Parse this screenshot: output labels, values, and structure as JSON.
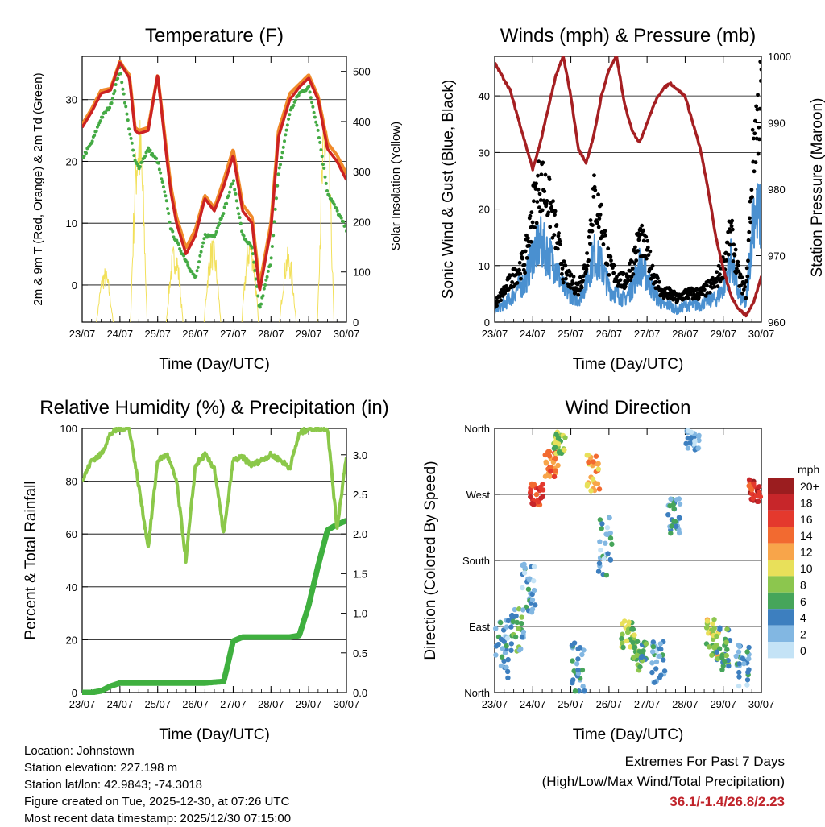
{
  "colors": {
    "red": "#cc2222",
    "orange": "#f08a2a",
    "green": "#44aa44",
    "yellow": "#f2e05a",
    "blue": "#4a90d0",
    "black": "#000000",
    "maroon": "#a51f22",
    "rh": "#8bc84a",
    "rain": "#3fb03f",
    "extreme": "#c0232a"
  },
  "x_ticks": [
    "23/07",
    "24/07",
    "25/07",
    "26/07",
    "27/07",
    "28/07",
    "29/07",
    "30/07"
  ],
  "chart_data": [
    {
      "id": "temperature",
      "type": "line",
      "title": "Temperature (F)",
      "xlabel": "Time (Day/UTC)",
      "ylabel": "2m & 9m T (Red, Orange) & 2m Td (Green)",
      "y2label": "Solar Insolation (Yellow)",
      "x": [
        0,
        0.25,
        0.5,
        0.75,
        1,
        1.1,
        1.25,
        1.4,
        1.5,
        1.75,
        2,
        2.25,
        2.35,
        2.5,
        2.75,
        3,
        3.25,
        3.5,
        3.75,
        4,
        4.25,
        4.5,
        4.7,
        5,
        5.2,
        5.5,
        5.75,
        6,
        6.25,
        6.5,
        6.75,
        7
      ],
      "ylim": [
        -6,
        37
      ],
      "yticks": [
        0,
        10,
        20,
        30
      ],
      "y2lim": [
        0,
        530
      ],
      "y2ticks": [
        0,
        100,
        200,
        300,
        400,
        500
      ],
      "series": [
        {
          "name": "2m T",
          "color": "red",
          "values": [
            25.5,
            28,
            31,
            31.5,
            36,
            35,
            33.5,
            25,
            24.5,
            25,
            34,
            20,
            15,
            10,
            5,
            8,
            14,
            12,
            16,
            21,
            12,
            10,
            -1,
            9,
            24,
            30,
            32,
            33.5,
            30,
            22,
            20,
            17
          ]
        },
        {
          "name": "9m T",
          "color": "orange",
          "values": [
            26,
            28.5,
            31.5,
            31.8,
            36.2,
            35.2,
            34,
            25.5,
            25,
            25.5,
            34,
            21,
            16,
            11,
            6,
            9,
            14.5,
            12.5,
            17,
            22,
            13,
            11,
            0,
            10,
            25,
            31,
            32.5,
            34,
            30.5,
            23,
            21,
            18
          ]
        },
        {
          "name": "2m Td",
          "color": "green",
          "values": [
            20.5,
            23,
            27,
            29,
            35,
            31,
            25,
            20,
            19,
            22,
            20,
            13,
            9,
            7,
            4,
            1,
            8,
            8,
            12,
            17,
            8,
            6,
            -4,
            4,
            18,
            28,
            31,
            32,
            25,
            15,
            12,
            9
          ]
        },
        {
          "name": "Solar Insolation",
          "color": "yellow",
          "axis": "y2",
          "peaks": [
            0.6,
            1.5,
            2.45,
            3.45,
            4.45,
            5.45,
            6.45
          ],
          "peak_values": [
            110,
            430,
            160,
            170,
            180,
            150,
            440
          ]
        }
      ]
    },
    {
      "id": "winds",
      "type": "line",
      "title": "Winds (mph) & Pressure (mb)",
      "xlabel": "Time (Day/UTC)",
      "ylabel": "Sonic Wind & Gust (Blue, Black)",
      "y2label": "Station Pressure (Maroon)",
      "ylim": [
        0,
        47
      ],
      "yticks": [
        0,
        10,
        20,
        30,
        40
      ],
      "y2lim": [
        960,
        1000
      ],
      "y2ticks": [
        960,
        970,
        980,
        990,
        1000
      ],
      "x": [
        0,
        0.2,
        0.4,
        0.6,
        0.8,
        1,
        1.2,
        1.4,
        1.6,
        1.8,
        2,
        2.2,
        2.4,
        2.6,
        2.8,
        3,
        3.2,
        3.4,
        3.6,
        3.8,
        4,
        4.2,
        4.4,
        4.6,
        4.8,
        5,
        5.2,
        5.4,
        5.6,
        5.8,
        6,
        6.2,
        6.4,
        6.6,
        6.8,
        7
      ],
      "series": [
        {
          "name": "Sonic Wind",
          "color": "blue",
          "values": [
            2,
            3,
            4,
            6,
            7,
            12,
            14,
            12,
            10,
            6,
            5,
            4,
            7,
            12,
            10,
            6,
            5,
            4,
            6,
            10,
            8,
            5,
            3,
            3,
            2,
            3,
            3,
            3,
            4,
            4,
            6,
            11,
            5,
            3,
            20,
            18
          ]
        },
        {
          "name": "Gust",
          "color": "black",
          "values": [
            3,
            5,
            7,
            9,
            11,
            20,
            25,
            22,
            16,
            9,
            7,
            6,
            10,
            22,
            18,
            10,
            8,
            7,
            10,
            15,
            12,
            8,
            5,
            5,
            4,
            5,
            5,
            5,
            6,
            7,
            10,
            16,
            8,
            5,
            32,
            40
          ]
        },
        {
          "name": "Station Pressure",
          "color": "maroon",
          "axis": "y2",
          "values": [
            999,
            997,
            995,
            991,
            987,
            983,
            987,
            992,
            997,
            1000,
            994,
            986,
            984,
            988,
            994,
            998,
            1000,
            993,
            989,
            987,
            990,
            993,
            995,
            996,
            995,
            994,
            990,
            986,
            980,
            973,
            968,
            964,
            962,
            961,
            963,
            967
          ]
        }
      ]
    },
    {
      "id": "humidity",
      "type": "line",
      "title": "Relative Humidity (%) & Precipitation (in)",
      "xlabel": "Time (Day/UTC)",
      "ylabel": "Percent & Total Rainfall",
      "ylim": [
        0,
        100
      ],
      "yticks": [
        0,
        20,
        40,
        60,
        80,
        100
      ],
      "y2lim": [
        0,
        3.333
      ],
      "y2ticks": [
        0.0,
        0.5,
        1.0,
        1.5,
        2.0,
        2.5,
        3.0
      ],
      "y2ticklabels": [
        "0.0",
        "0.5",
        "1.0",
        "1.5",
        "2.0",
        "2.5",
        "3.0"
      ],
      "x": [
        0,
        0.25,
        0.5,
        0.75,
        1,
        1.25,
        1.5,
        1.75,
        2,
        2.25,
        2.5,
        2.75,
        3,
        3.25,
        3.5,
        3.75,
        4,
        4.25,
        4.5,
        4.75,
        5,
        5.25,
        5.5,
        5.75,
        6,
        6.25,
        6.5,
        6.75,
        7
      ],
      "series": [
        {
          "name": "Relative Humidity",
          "color": "rh",
          "values": [
            80,
            88,
            90,
            98,
            100,
            100,
            78,
            55,
            88,
            90,
            80,
            50,
            86,
            90,
            85,
            60,
            88,
            89,
            86,
            88,
            90,
            88,
            85,
            98,
            100,
            100,
            100,
            62,
            90
          ]
        },
        {
          "name": "Total Precipitation",
          "color": "rain",
          "axis": "y2",
          "values": [
            0,
            0,
            0.02,
            0.08,
            0.12,
            0.12,
            0.12,
            0.12,
            0.12,
            0.12,
            0.12,
            0.12,
            0.12,
            0.12,
            0.13,
            0.14,
            0.65,
            0.7,
            0.7,
            0.7,
            0.7,
            0.7,
            0.7,
            0.72,
            1.1,
            1.6,
            2.05,
            2.12,
            2.17
          ]
        }
      ]
    },
    {
      "id": "direction",
      "type": "scatter",
      "title": "Wind Direction",
      "xlabel": "Time (Day/UTC)",
      "ylabel": "Direction (Colored By Speed)",
      "ylim": [
        0,
        360
      ],
      "yticks": [
        0,
        90,
        180,
        270,
        360
      ],
      "yticklabels": [
        "North",
        "East",
        "South",
        "West",
        "North"
      ],
      "legend_title": "mph",
      "legend_labels": [
        "20+",
        "18",
        "16",
        "14",
        "12",
        "10",
        "8",
        "6",
        "4",
        "2",
        "0"
      ],
      "legend_colors": [
        "#9b1d1f",
        "#c7262a",
        "#e4392d",
        "#f26a30",
        "#f8a54a",
        "#e8e05a",
        "#8cc64e",
        "#46a55a",
        "#3d7fbf",
        "#82b7e2",
        "#c4e3f6"
      ],
      "clusters": [
        {
          "x": 0.2,
          "dir": 60,
          "spread": 40,
          "speed": 3
        },
        {
          "x": 0.6,
          "dir": 85,
          "spread": 30,
          "speed": 5
        },
        {
          "x": 0.9,
          "dir": 140,
          "spread": 35,
          "speed": 3
        },
        {
          "x": 1.1,
          "dir": 270,
          "spread": 15,
          "speed": 16
        },
        {
          "x": 1.5,
          "dir": 310,
          "spread": 20,
          "speed": 14
        },
        {
          "x": 1.7,
          "dir": 340,
          "spread": 15,
          "speed": 8
        },
        {
          "x": 2.2,
          "dir": 30,
          "spread": 40,
          "speed": 4
        },
        {
          "x": 2.6,
          "dir": 300,
          "spread": 25,
          "speed": 12
        },
        {
          "x": 2.9,
          "dir": 200,
          "spread": 40,
          "speed": 3
        },
        {
          "x": 3.5,
          "dir": 80,
          "spread": 20,
          "speed": 8
        },
        {
          "x": 3.8,
          "dir": 50,
          "spread": 20,
          "speed": 6
        },
        {
          "x": 4.3,
          "dir": 40,
          "spread": 30,
          "speed": 3
        },
        {
          "x": 4.7,
          "dir": 240,
          "spread": 25,
          "speed": 4
        },
        {
          "x": 5.2,
          "dir": 345,
          "spread": 15,
          "speed": 3
        },
        {
          "x": 5.7,
          "dir": 75,
          "spread": 25,
          "speed": 9
        },
        {
          "x": 6.0,
          "dir": 60,
          "spread": 30,
          "speed": 6
        },
        {
          "x": 6.5,
          "dir": 35,
          "spread": 30,
          "speed": 3
        },
        {
          "x": 6.85,
          "dir": 275,
          "spread": 15,
          "speed": 17
        }
      ]
    }
  ],
  "station": {
    "location": "Location: Johnstown",
    "elevation": "Station elevation: 227.198 m",
    "latlon": "Station lat/lon: 42.9843; -74.3018",
    "created": "Figure created on Tue, 2025-12-30, at 07:26 UTC",
    "timestamp": "Most recent data timestamp: 2025/12/30 07:15:00"
  },
  "extremes": {
    "title": "Extremes For Past 7 Days",
    "subtitle": "(High/Low/Max Wind/Total Precipitation)",
    "values": "36.1/-1.4/26.8/2.23"
  }
}
